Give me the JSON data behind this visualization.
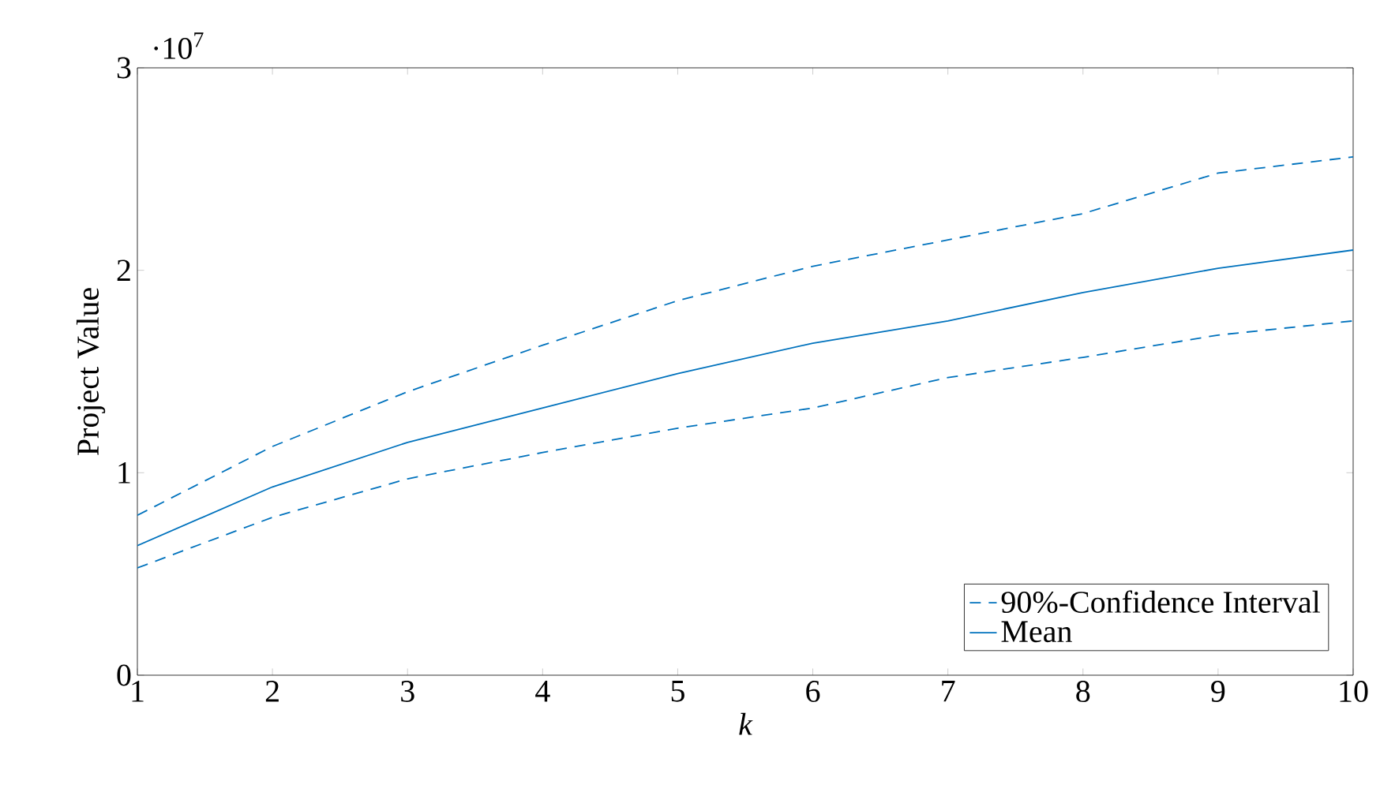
{
  "chart_data": {
    "type": "line",
    "xlabel": "k",
    "ylabel": "Project Value",
    "x": [
      1,
      2,
      3,
      4,
      5,
      6,
      7,
      8,
      9,
      10
    ],
    "series": [
      {
        "name": "90%-Confidence Interval",
        "color": "#0072bd",
        "line_style": "dashed",
        "values": [
          0.79,
          1.13,
          1.4,
          1.63,
          1.85,
          2.02,
          2.15,
          2.28,
          2.48,
          2.56
        ]
      },
      {
        "name": "Mean",
        "color": "#0072bd",
        "line_style": "solid",
        "values": [
          0.64,
          0.93,
          1.15,
          1.32,
          1.49,
          1.64,
          1.75,
          1.89,
          2.01,
          2.1
        ]
      },
      {
        "color": "#0072bd",
        "line_style": "dashed",
        "values": [
          0.53,
          0.78,
          0.97,
          1.1,
          1.22,
          1.32,
          1.47,
          1.57,
          1.68,
          1.75
        ]
      }
    ],
    "xlim": [
      1,
      10
    ],
    "ylim": [
      0,
      3
    ],
    "xticks": [
      1,
      2,
      3,
      4,
      5,
      6,
      7,
      8,
      9,
      10
    ],
    "yticks": [
      0,
      1,
      2,
      3
    ],
    "annotations": [
      "·10$^{7}$"
    ],
    "legend": "bottom right",
    "grid": false,
    "marker": "none"
  }
}
